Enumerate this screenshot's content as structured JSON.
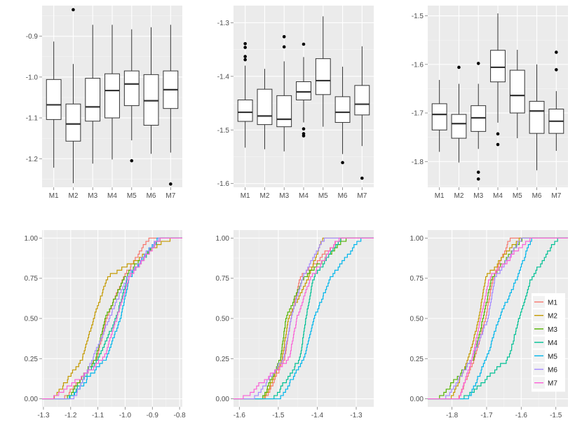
{
  "colors": {
    "panel_bg": "#EBEBEB",
    "grid_major": "#FFFFFF",
    "grid_minor": "#F5F5F5",
    "box_fill": "#FFFFFF",
    "box_line": "#333333",
    "series": {
      "M1": "#F8766D",
      "M2": "#C49A00",
      "M3": "#53B400",
      "M4": "#00C094",
      "M5": "#00B6EB",
      "M6": "#A58AFF",
      "M7": "#FB61D7"
    }
  },
  "legend": {
    "entries": [
      "M1",
      "M2",
      "M3",
      "M4",
      "M5",
      "M6",
      "M7"
    ],
    "placement": "bottom-right of lower-right panel"
  },
  "chart_data": [
    {
      "type": "box",
      "categories": [
        "M1",
        "M2",
        "M3",
        "M4",
        "M5",
        "M6",
        "M7"
      ],
      "ylim": [
        -1.27,
        -0.825
      ],
      "yticks": [
        -1.2,
        -1.1,
        -1.0,
        -0.9
      ],
      "yticklabels": [
        "-1.2",
        "-1.1",
        "-1.0",
        "-0.9"
      ],
      "boxes": [
        {
          "min": -1.222,
          "q1": -1.104,
          "median": -1.068,
          "q3": -1.006,
          "max": -0.913,
          "outliers": []
        },
        {
          "min": -1.26,
          "q1": -1.157,
          "median": -1.115,
          "q3": -1.066,
          "max": -0.968,
          "outliers": [
            -0.835
          ]
        },
        {
          "min": -1.212,
          "q1": -1.108,
          "median": -1.073,
          "q3": -1.003,
          "max": -0.872,
          "outliers": []
        },
        {
          "min": -1.202,
          "q1": -1.1,
          "median": -1.033,
          "q3": -0.992,
          "max": -0.872,
          "outliers": []
        },
        {
          "min": -1.155,
          "q1": -1.07,
          "median": -1.017,
          "q3": -0.985,
          "max": -0.883,
          "outliers": [
            -1.205
          ]
        },
        {
          "min": -1.188,
          "q1": -1.118,
          "median": -1.058,
          "q3": -0.994,
          "max": -0.878,
          "outliers": []
        },
        {
          "min": -1.185,
          "q1": -1.077,
          "median": -1.031,
          "q3": -0.985,
          "max": -0.872,
          "outliers": [
            -1.262
          ]
        }
      ]
    },
    {
      "type": "box",
      "categories": [
        "M1",
        "M2",
        "M3",
        "M4",
        "M5",
        "M6",
        "M7"
      ],
      "ylim": [
        -1.607,
        -1.268
      ],
      "yticks": [
        -1.6,
        -1.5,
        -1.4,
        -1.3
      ],
      "yticklabels": [
        "-1.6",
        "-1.5",
        "-1.4",
        "-1.3"
      ],
      "boxes": [
        {
          "min": -1.533,
          "q1": -1.484,
          "median": -1.467,
          "q3": -1.444,
          "max": -1.38,
          "outliers": [
            -1.339,
            -1.346,
            -1.363,
            -1.369
          ]
        },
        {
          "min": -1.536,
          "q1": -1.49,
          "median": -1.474,
          "q3": -1.424,
          "max": -1.386,
          "outliers": []
        },
        {
          "min": -1.54,
          "q1": -1.494,
          "median": -1.48,
          "q3": -1.436,
          "max": -1.372,
          "outliers": [
            -1.326,
            -1.345
          ]
        },
        {
          "min": -1.486,
          "q1": -1.444,
          "median": -1.429,
          "q3": -1.41,
          "max": -1.364,
          "outliers": [
            -1.34,
            -1.498,
            -1.507,
            -1.511
          ]
        },
        {
          "min": -1.494,
          "q1": -1.434,
          "median": -1.408,
          "q3": -1.367,
          "max": -1.288,
          "outliers": []
        },
        {
          "min": -1.545,
          "q1": -1.486,
          "median": -1.467,
          "q3": -1.438,
          "max": -1.382,
          "outliers": [
            -1.561
          ]
        },
        {
          "min": -1.53,
          "q1": -1.472,
          "median": -1.452,
          "q3": -1.417,
          "max": -1.344,
          "outliers": [
            -1.59
          ]
        }
      ]
    },
    {
      "type": "box",
      "categories": [
        "M1",
        "M2",
        "M3",
        "M4",
        "M5",
        "M6",
        "M7"
      ],
      "ylim": [
        -1.853,
        -1.479
      ],
      "yticks": [
        -1.8,
        -1.7,
        -1.6,
        -1.5
      ],
      "yticklabels": [
        "-1.8",
        "-1.7",
        "-1.6",
        "-1.5"
      ],
      "boxes": [
        {
          "min": -1.78,
          "q1": -1.735,
          "median": -1.703,
          "q3": -1.681,
          "max": -1.632,
          "outliers": []
        },
        {
          "min": -1.802,
          "q1": -1.752,
          "median": -1.722,
          "q3": -1.703,
          "max": -1.64,
          "outliers": [
            -1.606
          ]
        },
        {
          "min": -1.774,
          "q1": -1.738,
          "median": -1.71,
          "q3": -1.685,
          "max": -1.64,
          "outliers": [
            -1.598,
            -1.822,
            -1.836
          ]
        },
        {
          "min": -1.72,
          "q1": -1.636,
          "median": -1.606,
          "q3": -1.571,
          "max": -1.495,
          "outliers": [
            -1.743,
            -1.765
          ]
        },
        {
          "min": -1.752,
          "q1": -1.7,
          "median": -1.664,
          "q3": -1.612,
          "max": -1.57,
          "outliers": []
        },
        {
          "min": -1.818,
          "q1": -1.742,
          "median": -1.696,
          "q3": -1.676,
          "max": -1.6,
          "outliers": []
        },
        {
          "min": -1.778,
          "q1": -1.742,
          "median": -1.717,
          "q3": -1.692,
          "max": -1.655,
          "outliers": [
            -1.575,
            -1.611
          ]
        }
      ]
    },
    {
      "type": "ecdf",
      "xlim": [
        -1.305,
        -0.79
      ],
      "ylim": [
        -0.05,
        1.05
      ],
      "xticks": [
        -1.3,
        -1.2,
        -1.1,
        -1.0,
        -0.9,
        -0.8
      ],
      "xticklabels": [
        "-1.3",
        "-1.2",
        "-1.1",
        "-1.0",
        "-0.9",
        "-0.8"
      ],
      "yticks": [
        0,
        0.25,
        0.5,
        0.75,
        1
      ],
      "yticklabels": [
        "0.00",
        "0.25",
        "0.50",
        "0.75",
        "1.00"
      ],
      "series": [
        {
          "name": "M1",
          "min": -1.222,
          "q1": -1.104,
          "median": -1.068,
          "q3": -1.006,
          "max": -0.913
        },
        {
          "name": "M2",
          "min": -1.26,
          "q1": -1.157,
          "median": -1.115,
          "q3": -1.066,
          "max": -0.835
        },
        {
          "name": "M3",
          "min": -1.212,
          "q1": -1.108,
          "median": -1.073,
          "q3": -1.003,
          "max": -0.872
        },
        {
          "name": "M4",
          "min": -1.202,
          "q1": -1.1,
          "median": -1.033,
          "q3": -0.992,
          "max": -0.872
        },
        {
          "name": "M5",
          "min": -1.205,
          "q1": -1.07,
          "median": -1.017,
          "q3": -0.985,
          "max": -0.883
        },
        {
          "name": "M6",
          "min": -1.188,
          "q1": -1.118,
          "median": -1.058,
          "q3": -0.994,
          "max": -0.878
        },
        {
          "name": "M7",
          "min": -1.262,
          "q1": -1.077,
          "median": -1.031,
          "q3": -0.985,
          "max": -0.872
        }
      ]
    },
    {
      "type": "ecdf",
      "xlim": [
        -1.615,
        -1.255
      ],
      "ylim": [
        -0.05,
        1.05
      ],
      "xticks": [
        -1.6,
        -1.5,
        -1.4,
        -1.3
      ],
      "xticklabels": [
        "-1.6",
        "-1.5",
        "-1.4",
        "-1.3"
      ],
      "yticks": [
        0,
        0.25,
        0.5,
        0.75,
        1
      ],
      "yticklabels": [
        "0.00",
        "0.25",
        "0.50",
        "0.75",
        "1.00"
      ],
      "series": [
        {
          "name": "M1",
          "min": -1.533,
          "q1": -1.484,
          "median": -1.467,
          "q3": -1.444,
          "max": -1.339
        },
        {
          "name": "M2",
          "min": -1.536,
          "q1": -1.49,
          "median": -1.474,
          "q3": -1.424,
          "max": -1.386
        },
        {
          "name": "M3",
          "min": -1.54,
          "q1": -1.494,
          "median": -1.48,
          "q3": -1.436,
          "max": -1.326
        },
        {
          "name": "M4",
          "min": -1.511,
          "q1": -1.444,
          "median": -1.429,
          "q3": -1.41,
          "max": -1.34
        },
        {
          "name": "M5",
          "min": -1.494,
          "q1": -1.434,
          "median": -1.408,
          "q3": -1.367,
          "max": -1.288
        },
        {
          "name": "M6",
          "min": -1.561,
          "q1": -1.486,
          "median": -1.467,
          "q3": -1.438,
          "max": -1.382
        },
        {
          "name": "M7",
          "min": -1.59,
          "q1": -1.472,
          "median": -1.452,
          "q3": -1.417,
          "max": -1.344
        }
      ]
    },
    {
      "type": "ecdf",
      "xlim": [
        -1.87,
        -1.465
      ],
      "ylim": [
        -0.05,
        1.05
      ],
      "xticks": [
        -1.8,
        -1.7,
        -1.6,
        -1.5
      ],
      "xticklabels": [
        "-1.8",
        "-1.7",
        "-1.6",
        "-1.5"
      ],
      "yticks": [
        0,
        0.25,
        0.5,
        0.75,
        1
      ],
      "yticklabels": [
        "0.00",
        "0.25",
        "0.50",
        "0.75",
        "1.00"
      ],
      "series": [
        {
          "name": "M1",
          "min": -1.78,
          "q1": -1.735,
          "median": -1.703,
          "q3": -1.681,
          "max": -1.632
        },
        {
          "name": "M2",
          "min": -1.802,
          "q1": -1.752,
          "median": -1.722,
          "q3": -1.703,
          "max": -1.606
        },
        {
          "name": "M3",
          "min": -1.836,
          "q1": -1.738,
          "median": -1.71,
          "q3": -1.685,
          "max": -1.598
        },
        {
          "name": "M4",
          "min": -1.765,
          "q1": -1.636,
          "median": -1.606,
          "q3": -1.571,
          "max": -1.495
        },
        {
          "name": "M5",
          "min": -1.752,
          "q1": -1.7,
          "median": -1.664,
          "q3": -1.612,
          "max": -1.57
        },
        {
          "name": "M6",
          "min": -1.818,
          "q1": -1.742,
          "median": -1.696,
          "q3": -1.676,
          "max": -1.6
        },
        {
          "name": "M7",
          "min": -1.778,
          "q1": -1.742,
          "median": -1.717,
          "q3": -1.692,
          "max": -1.575
        }
      ]
    }
  ]
}
